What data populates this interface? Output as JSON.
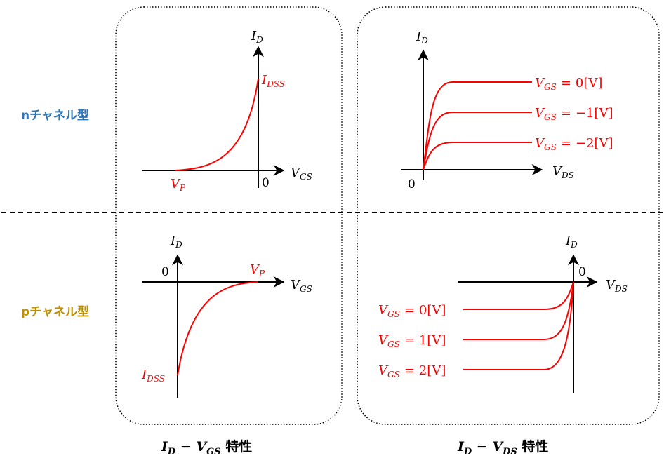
{
  "colors": {
    "curve": "#ff0000",
    "axis": "#000000",
    "n_label": "#2e75b6",
    "p_label": "#bf9000"
  },
  "rows": {
    "n": {
      "label": "nチャネル型"
    },
    "p": {
      "label": "pチャネル型"
    }
  },
  "columns": {
    "left": {
      "label_a": "I",
      "label_a_sub": "D",
      "label_op": "−",
      "label_b": "V",
      "label_b_sub": "GS",
      "label_suffix": "特性"
    },
    "right": {
      "label_a": "I",
      "label_a_sub": "D",
      "label_op": "−",
      "label_b": "V",
      "label_b_sub": "DS",
      "label_suffix": "特性"
    }
  },
  "axes": {
    "id_main": "I",
    "id_sub": "D",
    "vgs_main": "V",
    "vgs_sub": "GS",
    "vds_main": "V",
    "vds_sub": "DS",
    "zero": "0"
  },
  "markers": {
    "idss_main": "I",
    "idss_sub": "DSS",
    "vp_main": "V",
    "vp_sub": "P"
  },
  "n_channel_output_curves": [
    {
      "vgs_main": "V",
      "vgs_sub": "GS",
      "eq": "=",
      "value": "0[V]"
    },
    {
      "vgs_main": "V",
      "vgs_sub": "GS",
      "eq": "=",
      "value": "−1[V]"
    },
    {
      "vgs_main": "V",
      "vgs_sub": "GS",
      "eq": "=",
      "value": "−2[V]"
    }
  ],
  "p_channel_output_curves": [
    {
      "vgs_main": "V",
      "vgs_sub": "GS",
      "eq": "=",
      "value": "0[V]"
    },
    {
      "vgs_main": "V",
      "vgs_sub": "GS",
      "eq": "=",
      "value": "1[V]"
    },
    {
      "vgs_main": "V",
      "vgs_sub": "GS",
      "eq": "=",
      "value": "2[V]"
    }
  ]
}
